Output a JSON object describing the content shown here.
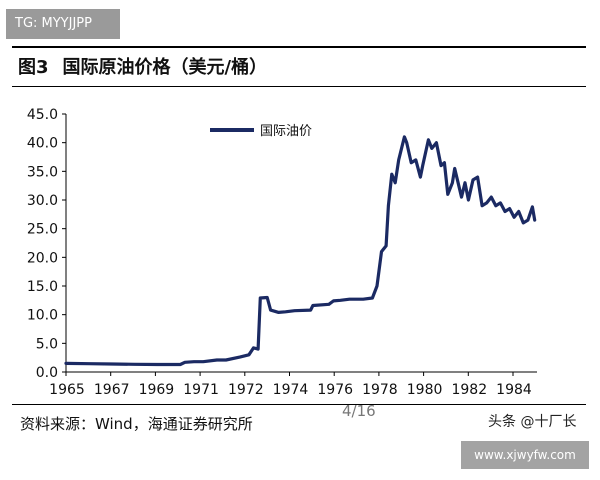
{
  "watermark_top": "TG: MYYJJPP",
  "figure": {
    "number": "图3",
    "title": "国际原油价格（美元/桶）"
  },
  "source_note": "资料来源：Wind，海通证券研究所",
  "page_indicator": "4/16",
  "toutiao_label": "头条 @十厂长",
  "url_watermark": "www.xjwyfw.com",
  "colors": {
    "series": "#1b2a63",
    "axis": "#000000"
  },
  "chart_data": {
    "type": "line",
    "title": "",
    "xlabel": "",
    "ylabel": "",
    "xlim": [
      1965,
      1985.6
    ],
    "ylim": [
      0,
      45
    ],
    "grid": false,
    "legend_position": "top-left",
    "x_ticks": [
      "1965",
      "1967",
      "1969",
      "1971",
      "1972",
      "1974",
      "1976",
      "1978",
      "1980",
      "1982",
      "1984"
    ],
    "y_ticks": [
      "0.0",
      "5.0",
      "10.0",
      "15.0",
      "20.0",
      "25.0",
      "30.0",
      "35.0",
      "40.0",
      "45.0"
    ],
    "series": [
      {
        "name": "国际油价",
        "points": [
          [
            1965.0,
            1.5
          ],
          [
            1966.0,
            1.45
          ],
          [
            1967.0,
            1.4
          ],
          [
            1968.0,
            1.35
          ],
          [
            1969.0,
            1.3
          ],
          [
            1970.0,
            1.3
          ],
          [
            1970.2,
            1.7
          ],
          [
            1970.6,
            1.8
          ],
          [
            1971.0,
            1.8
          ],
          [
            1971.6,
            2.1
          ],
          [
            1972.0,
            2.1
          ],
          [
            1972.6,
            2.6
          ],
          [
            1973.0,
            3.0
          ],
          [
            1973.2,
            4.2
          ],
          [
            1973.4,
            4.0
          ],
          [
            1973.5,
            12.9
          ],
          [
            1973.8,
            13.0
          ],
          [
            1973.95,
            10.8
          ],
          [
            1974.3,
            10.4
          ],
          [
            1974.6,
            10.5
          ],
          [
            1975.0,
            10.7
          ],
          [
            1975.7,
            10.8
          ],
          [
            1975.8,
            11.6
          ],
          [
            1976.5,
            11.8
          ],
          [
            1976.7,
            12.4
          ],
          [
            1977.0,
            12.5
          ],
          [
            1977.4,
            12.7
          ],
          [
            1978.0,
            12.7
          ],
          [
            1978.4,
            12.9
          ],
          [
            1978.6,
            15.0
          ],
          [
            1978.8,
            21.0
          ],
          [
            1979.0,
            22.0
          ],
          [
            1979.1,
            29.0
          ],
          [
            1979.25,
            34.5
          ],
          [
            1979.4,
            33.0
          ],
          [
            1979.55,
            37.0
          ],
          [
            1979.8,
            41.0
          ],
          [
            1979.9,
            40.0
          ],
          [
            1980.1,
            36.5
          ],
          [
            1980.3,
            37.0
          ],
          [
            1980.5,
            34.0
          ],
          [
            1980.6,
            36.0
          ],
          [
            1980.85,
            40.5
          ],
          [
            1981.0,
            39.0
          ],
          [
            1981.2,
            40.0
          ],
          [
            1981.4,
            36.0
          ],
          [
            1981.55,
            36.5
          ],
          [
            1981.7,
            31.0
          ],
          [
            1981.9,
            33.0
          ],
          [
            1982.0,
            35.5
          ],
          [
            1982.15,
            33.0
          ],
          [
            1982.3,
            30.5
          ],
          [
            1982.45,
            33.0
          ],
          [
            1982.6,
            30.0
          ],
          [
            1982.8,
            33.5
          ],
          [
            1983.0,
            34.0
          ],
          [
            1983.2,
            29.0
          ],
          [
            1983.4,
            29.5
          ],
          [
            1983.6,
            30.5
          ],
          [
            1983.8,
            29.0
          ],
          [
            1984.0,
            29.5
          ],
          [
            1984.2,
            28.0
          ],
          [
            1984.4,
            28.5
          ],
          [
            1984.6,
            27.0
          ],
          [
            1984.8,
            28.0
          ],
          [
            1985.0,
            26.0
          ],
          [
            1985.2,
            26.5
          ],
          [
            1985.4,
            28.8
          ],
          [
            1985.5,
            26.5
          ]
        ]
      }
    ]
  }
}
